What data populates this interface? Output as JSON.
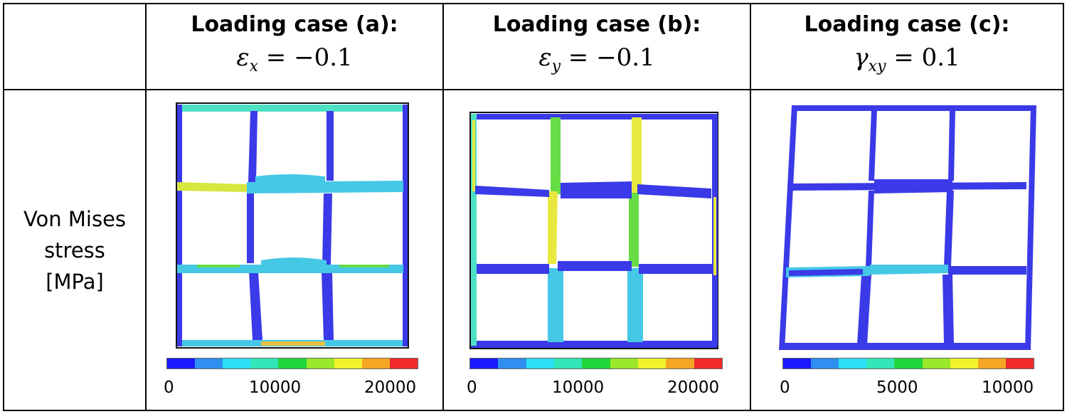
{
  "columns": [
    {
      "title": "Loading case (a):",
      "formula": "εx = −0.1",
      "formula_sym": "ε",
      "formula_sub": "x",
      "formula_rest": " = −0.1",
      "ticks": [
        "0",
        "10000",
        "20000"
      ]
    },
    {
      "title": "Loading case (b):",
      "formula": "εy = −0.1",
      "formula_sym": "ε",
      "formula_sub": "y",
      "formula_rest": " = −0.1",
      "ticks": [
        "0",
        "10000",
        "20000"
      ]
    },
    {
      "title": "Loading case (c):",
      "formula": "γxy = 0.1",
      "formula_sym": "γ",
      "formula_sub": "xy",
      "formula_rest": " = 0.1",
      "ticks": [
        "0",
        "5000",
        "10000"
      ]
    }
  ],
  "row_label": [
    "Von Mises",
    "stress",
    "[MPa]"
  ],
  "colorbar_colors": [
    "#1a1aff",
    "#2f8ff0",
    "#2be0f5",
    "#33e6b8",
    "#22d63a",
    "#9be82a",
    "#f2f22a",
    "#f5a623",
    "#f02a2a"
  ],
  "mesh_colors": {
    "blue": "#3a3ae8",
    "cyan": "#45c8e6",
    "teal": "#4ee0c4",
    "green": "#66dd44",
    "yellow": "#e8e840",
    "dark": "#111111"
  }
}
